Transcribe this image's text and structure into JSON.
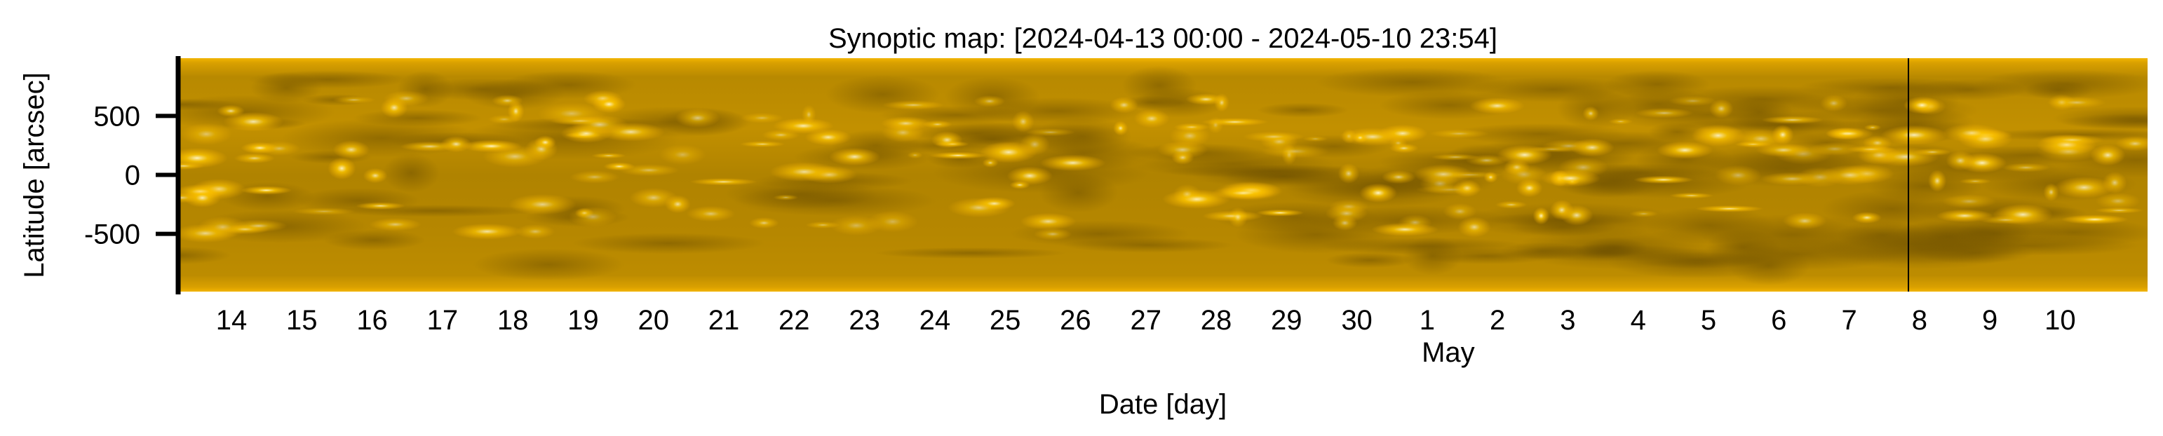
{
  "chart_data": {
    "type": "heatmap",
    "title": "Synoptic map: [2024-04-13 00:00 - 2024-05-10 23:54]",
    "xlabel": "Date [day]",
    "ylabel": "Latitude [arcsec]",
    "x_tick_labels": [
      "14",
      "15",
      "16",
      "17",
      "18",
      "19",
      "20",
      "21",
      "22",
      "23",
      "24",
      "25",
      "26",
      "27",
      "28",
      "29",
      "30",
      "1",
      "2",
      "3",
      "4",
      "5",
      "6",
      "7",
      "8",
      "9",
      "10"
    ],
    "x_secondary_label": "May",
    "x_secondary_label_under": "1",
    "x_range": [
      "2024-04-13 00:00",
      "2024-05-10 23:54"
    ],
    "y_ticks": [
      500,
      0,
      -500
    ],
    "y_tick_labels": [
      "500",
      "0",
      "-500"
    ],
    "ylim": [
      -990,
      990
    ],
    "colormap": "solar orange",
    "colors": {
      "base": "#b88900",
      "bright": "#fff4c0",
      "dark": "#7a5a00",
      "edge": "#f2b400"
    },
    "marker_line_day": 24.6,
    "grid": false
  }
}
